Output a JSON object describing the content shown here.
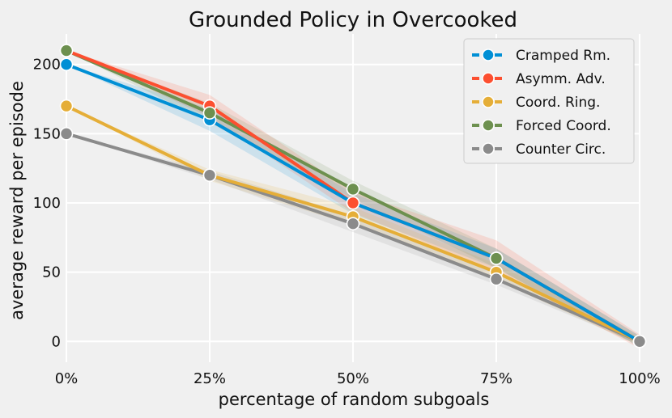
{
  "chart_data": {
    "type": "line",
    "title": "Grounded Policy in Overcooked",
    "xlabel": "percentage of random subgoals",
    "ylabel": "average reward per episode",
    "x": [
      0,
      25,
      50,
      75,
      100
    ],
    "xtick_labels": [
      "0%",
      "25%",
      "50%",
      "75%",
      "100%"
    ],
    "yticks": [
      0,
      50,
      100,
      150,
      200
    ],
    "xlim": [
      0,
      100
    ],
    "ylim": [
      -15,
      222
    ],
    "grid": true,
    "legend_position": "top-right",
    "series": [
      {
        "name": "Cramped Rm.",
        "color": "#008fd5",
        "values": [
          200,
          160,
          100,
          60,
          0
        ],
        "band": [
          [
            200,
            200
          ],
          [
            152,
            168
          ],
          [
            92,
            107
          ],
          [
            53,
            67
          ],
          [
            -4,
            4
          ]
        ]
      },
      {
        "name": "Asymm. Adv.",
        "color": "#fc4f30",
        "values": [
          210,
          170,
          100,
          60,
          0
        ],
        "band": [
          [
            210,
            210
          ],
          [
            162,
            178
          ],
          [
            93,
            108
          ],
          [
            50,
            73
          ],
          [
            -5,
            5
          ]
        ]
      },
      {
        "name": "Coord. Ring.",
        "color": "#e5ae38",
        "values": [
          170,
          120,
          90,
          50,
          0
        ],
        "band": [
          [
            170,
            170
          ],
          [
            116,
            124
          ],
          [
            84,
            97
          ],
          [
            44,
            56
          ],
          [
            -3,
            3
          ]
        ]
      },
      {
        "name": "Forced Coord.",
        "color": "#6d904f",
        "values": [
          210,
          165,
          110,
          60,
          0
        ],
        "band": [
          [
            210,
            210
          ],
          [
            158,
            172
          ],
          [
            103,
            116
          ],
          [
            53,
            67
          ],
          [
            -4,
            4
          ]
        ]
      },
      {
        "name": "Counter Circ.",
        "color": "#8b8b8b",
        "values": [
          150,
          120,
          85,
          45,
          0
        ],
        "band": [
          [
            150,
            150
          ],
          [
            117,
            123
          ],
          [
            79,
            91
          ],
          [
            41,
            49
          ],
          [
            -2,
            2
          ]
        ]
      }
    ]
  }
}
